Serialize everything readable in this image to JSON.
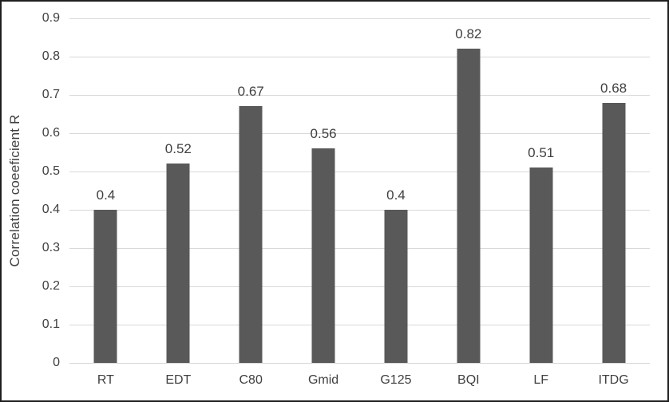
{
  "chart_data": {
    "type": "bar",
    "title": "",
    "categories": [
      "RT",
      "EDT",
      "C80",
      "Gmid",
      "G125",
      "BQI",
      "LF",
      "ITDG"
    ],
    "values": [
      0.4,
      0.52,
      0.67,
      0.56,
      0.4,
      0.82,
      0.51,
      0.68
    ],
    "data_labels": [
      "0.4",
      "0.52",
      "0.67",
      "0.56",
      "0.4",
      "0.82",
      "0.51",
      "0.68"
    ],
    "xlabel": "",
    "ylabel": "Correlation coeeficient R",
    "ylim": [
      0,
      0.9
    ],
    "ytick_step": 0.1,
    "ytick_labels": [
      "0",
      "0.1",
      "0.2",
      "0.3",
      "0.4",
      "0.5",
      "0.6",
      "0.7",
      "0.8",
      "0.9"
    ],
    "grid": true,
    "legend_position": "none",
    "colors": {
      "bar": "#595959",
      "gridline": "#d9d9d9",
      "axis_line": "#d9d9d9",
      "text": "#404040",
      "frame_border": "#1f1f1f",
      "background": "#ffffff"
    }
  }
}
